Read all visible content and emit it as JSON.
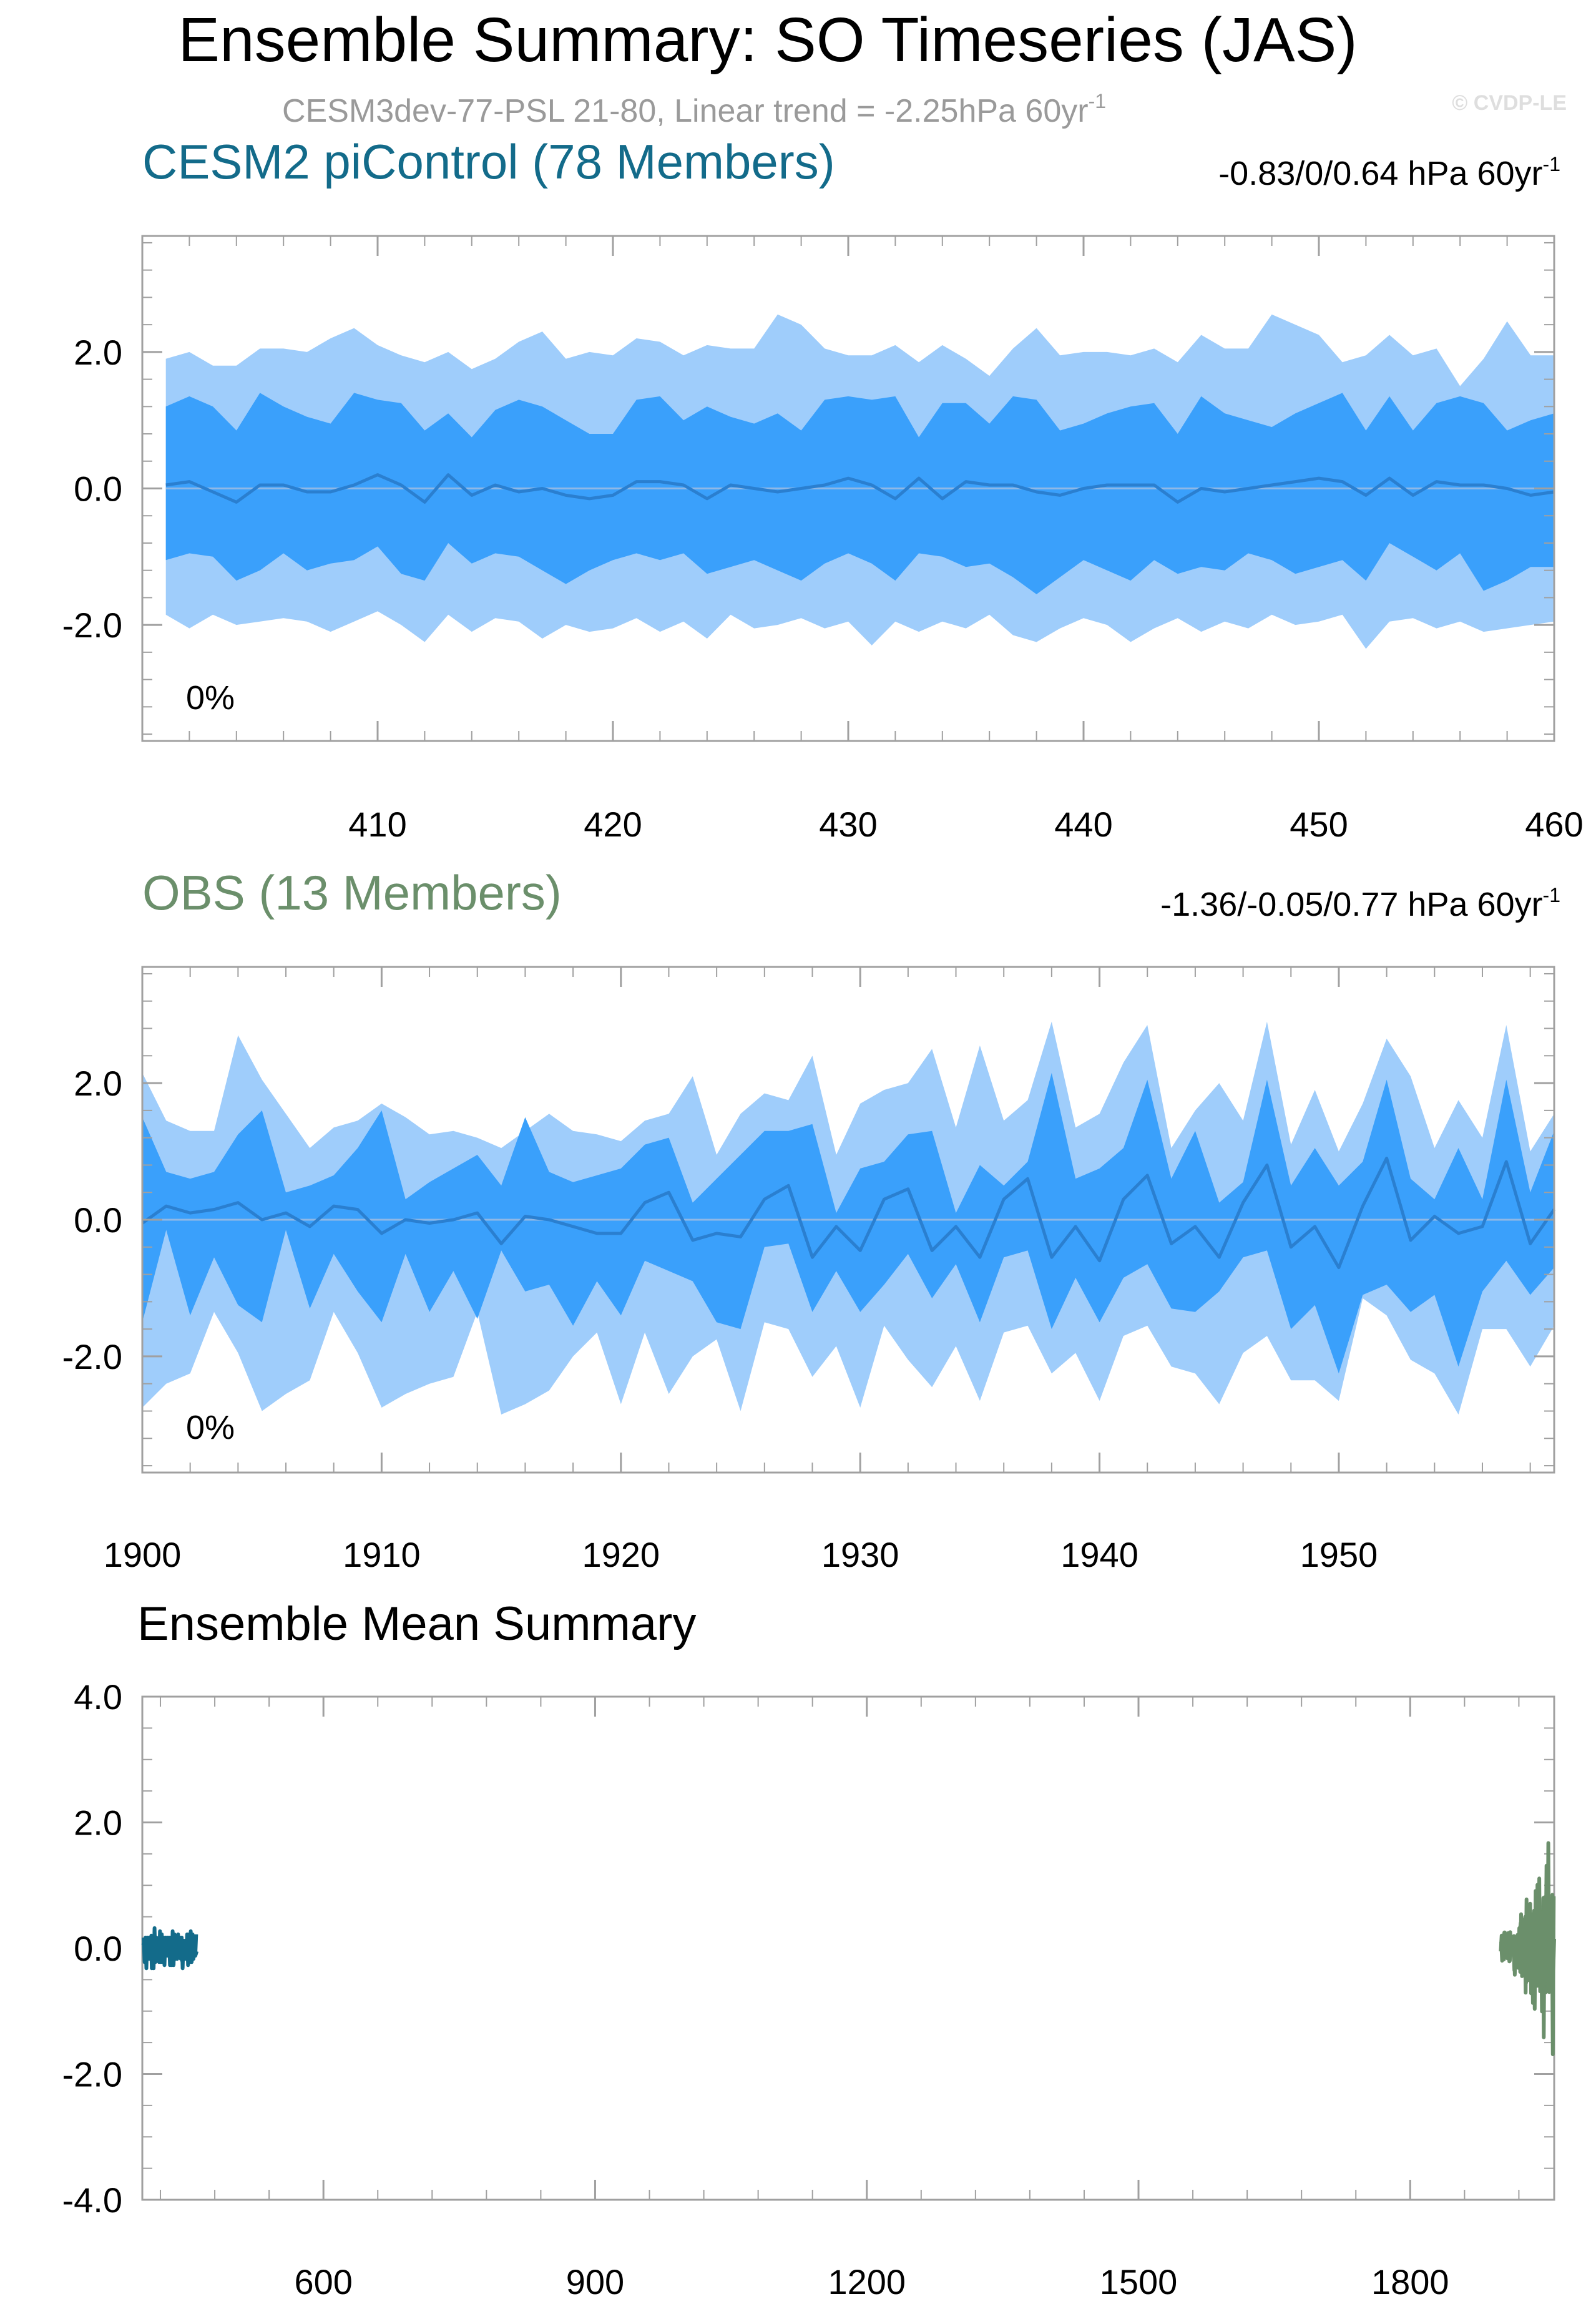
{
  "title": "Ensemble Summary: SO Timeseries (JAS)",
  "subtitle": "CESM3dev-77-PSL 21-80, Linear trend = -2.25hPa 60yr",
  "subtitle_sup": "-1",
  "watermark": "© CVDP-LE",
  "colors": {
    "band_outer": "#9fcdfb",
    "band_inner": "#3aa0fb",
    "mean_line": "#2a7fd0",
    "zero_line": "#8fb8e6",
    "cesm_label": "#136b8a",
    "obs_label": "#6b8f6b",
    "axis": "#a0a0a0"
  },
  "chart_data": [
    {
      "type": "area",
      "panel": "cesm",
      "title": "CESM2 piControl (78 Members)",
      "trend_text": "-0.83/0/0.64 hPa 60yr",
      "trend_sup": "-1",
      "annotation": "0%",
      "xlim": [
        400,
        460
      ],
      "ylim": [
        -3.7,
        3.7
      ],
      "yticks": [
        2.0,
        0.0,
        -2.0
      ],
      "ytick_labels": [
        "2.0",
        "0.0",
        "-2.0"
      ],
      "xticks": [
        410,
        420,
        430,
        440,
        450,
        460
      ],
      "xtick_labels": [
        "410",
        "420",
        "430",
        "440",
        "450",
        "460"
      ],
      "x": [
        401,
        402,
        403,
        404,
        405,
        406,
        407,
        408,
        409,
        410,
        411,
        412,
        413,
        414,
        415,
        416,
        417,
        418,
        419,
        420,
        421,
        422,
        423,
        424,
        425,
        426,
        427,
        428,
        429,
        430,
        431,
        432,
        433,
        434,
        435,
        436,
        437,
        438,
        439,
        440,
        441,
        442,
        443,
        444,
        445,
        446,
        447,
        448,
        449,
        450,
        451,
        452,
        453,
        454,
        455,
        456,
        457,
        458,
        459,
        460
      ],
      "outer_upper": [
        1.9,
        2.0,
        1.8,
        1.8,
        2.05,
        2.05,
        2.0,
        2.2,
        2.35,
        2.1,
        1.95,
        1.85,
        2.0,
        1.75,
        1.9,
        2.15,
        2.3,
        1.9,
        2.0,
        1.95,
        2.2,
        2.15,
        1.95,
        2.1,
        2.05,
        2.05,
        2.55,
        2.4,
        2.05,
        1.95,
        1.95,
        2.1,
        1.85,
        2.1,
        1.9,
        1.65,
        2.05,
        2.35,
        1.95,
        2.0,
        2.0,
        1.95,
        2.05,
        1.85,
        2.25,
        2.05,
        2.05,
        2.55,
        2.4,
        2.25,
        1.85,
        1.95,
        2.25,
        1.95,
        2.05,
        1.5,
        1.9,
        2.45,
        1.95,
        1.95
      ],
      "inner_upper": [
        1.2,
        1.35,
        1.2,
        0.85,
        1.4,
        1.2,
        1.05,
        0.95,
        1.4,
        1.3,
        1.25,
        0.85,
        1.1,
        0.75,
        1.15,
        1.3,
        1.2,
        1.0,
        0.8,
        0.8,
        1.3,
        1.35,
        1.0,
        1.2,
        1.05,
        0.95,
        1.1,
        0.85,
        1.3,
        1.35,
        1.3,
        1.35,
        0.75,
        1.25,
        1.25,
        0.95,
        1.35,
        1.3,
        0.85,
        0.95,
        1.1,
        1.2,
        1.25,
        0.8,
        1.35,
        1.1,
        1.0,
        0.9,
        1.1,
        1.25,
        1.4,
        0.85,
        1.35,
        0.85,
        1.25,
        1.35,
        1.25,
        0.85,
        1.0,
        1.1
      ],
      "mean": [
        0.05,
        0.1,
        -0.05,
        -0.2,
        0.05,
        0.05,
        -0.05,
        -0.05,
        0.05,
        0.2,
        0.05,
        -0.2,
        0.2,
        -0.1,
        0.05,
        -0.05,
        0.0,
        -0.1,
        -0.15,
        -0.1,
        0.1,
        0.1,
        0.05,
        -0.15,
        0.05,
        0.0,
        -0.05,
        0.0,
        0.05,
        0.15,
        0.05,
        -0.15,
        0.15,
        -0.15,
        0.1,
        0.05,
        0.05,
        -0.05,
        -0.1,
        0.0,
        0.05,
        0.05,
        0.05,
        -0.2,
        0.0,
        -0.05,
        0.0,
        0.05,
        0.1,
        0.15,
        0.1,
        -0.1,
        0.15,
        -0.1,
        0.1,
        0.05,
        0.05,
        0.0,
        -0.1,
        -0.05
      ],
      "inner_lower": [
        -1.05,
        -0.95,
        -1.0,
        -1.35,
        -1.2,
        -0.95,
        -1.2,
        -1.1,
        -1.05,
        -0.85,
        -1.25,
        -1.35,
        -0.8,
        -1.1,
        -0.95,
        -1.0,
        -1.2,
        -1.4,
        -1.2,
        -1.05,
        -0.95,
        -1.05,
        -0.95,
        -1.25,
        -1.15,
        -1.05,
        -1.2,
        -1.35,
        -1.1,
        -0.95,
        -1.1,
        -1.35,
        -0.95,
        -1.0,
        -1.15,
        -1.1,
        -1.3,
        -1.55,
        -1.3,
        -1.05,
        -1.2,
        -1.35,
        -1.05,
        -1.25,
        -1.15,
        -1.2,
        -0.95,
        -1.05,
        -1.25,
        -1.15,
        -1.05,
        -1.35,
        -0.8,
        -1.0,
        -1.2,
        -0.95,
        -1.5,
        -1.35,
        -1.15,
        -1.15
      ],
      "outer_lower": [
        -1.85,
        -2.05,
        -1.85,
        -2.0,
        -1.95,
        -1.9,
        -1.95,
        -2.1,
        -1.95,
        -1.8,
        -2.0,
        -2.25,
        -1.85,
        -2.1,
        -1.9,
        -1.95,
        -2.2,
        -2.0,
        -2.1,
        -2.05,
        -1.9,
        -2.1,
        -1.95,
        -2.2,
        -1.85,
        -2.05,
        -2.0,
        -1.9,
        -2.05,
        -1.95,
        -2.3,
        -1.95,
        -2.1,
        -1.95,
        -2.05,
        -1.85,
        -2.15,
        -2.25,
        -2.05,
        -1.9,
        -2.0,
        -2.25,
        -2.05,
        -1.9,
        -2.1,
        -1.95,
        -2.05,
        -1.85,
        -2.0,
        -1.95,
        -1.85,
        -2.35,
        -1.95,
        -1.9,
        -2.05,
        -1.95,
        -2.1,
        -2.05,
        -2.0,
        -1.95
      ]
    },
    {
      "type": "area",
      "panel": "obs",
      "title": "OBS (13 Members)",
      "trend_text": "-1.36/-0.05/0.77 hPa 60yr",
      "trend_sup": "-1",
      "annotation": "0%",
      "xlim": [
        1900,
        1959
      ],
      "ylim": [
        -3.7,
        3.7
      ],
      "yticks": [
        2.0,
        0.0,
        -2.0
      ],
      "ytick_labels": [
        "2.0",
        "0.0",
        "-2.0"
      ],
      "xticks": [
        1900,
        1910,
        1920,
        1930,
        1940,
        1950
      ],
      "xtick_labels": [
        "1900",
        "1910",
        "1920",
        "1930",
        "1940",
        "1950"
      ],
      "x": [
        1900,
        1901,
        1902,
        1903,
        1904,
        1905,
        1906,
        1907,
        1908,
        1909,
        1910,
        1911,
        1912,
        1913,
        1914,
        1915,
        1916,
        1917,
        1918,
        1919,
        1920,
        1921,
        1922,
        1923,
        1924,
        1925,
        1926,
        1927,
        1928,
        1929,
        1930,
        1931,
        1932,
        1933,
        1934,
        1935,
        1936,
        1937,
        1938,
        1939,
        1940,
        1941,
        1942,
        1943,
        1944,
        1945,
        1946,
        1947,
        1948,
        1949,
        1950,
        1951,
        1952,
        1953,
        1954,
        1955,
        1956,
        1957,
        1958,
        1959
      ],
      "outer_upper": [
        2.15,
        1.45,
        1.3,
        1.3,
        2.7,
        2.05,
        1.55,
        1.05,
        1.35,
        1.45,
        1.7,
        1.5,
        1.25,
        1.3,
        1.2,
        1.05,
        1.3,
        1.55,
        1.3,
        1.25,
        1.15,
        1.45,
        1.55,
        2.1,
        0.95,
        1.55,
        1.85,
        1.75,
        2.4,
        0.95,
        1.7,
        1.9,
        2.0,
        2.5,
        1.35,
        2.55,
        1.45,
        1.75,
        2.9,
        1.35,
        1.55,
        2.3,
        2.85,
        1.05,
        1.6,
        2.0,
        1.45,
        2.9,
        1.1,
        1.9,
        1.0,
        1.7,
        2.65,
        2.1,
        1.05,
        1.75,
        1.2,
        2.85,
        1.0,
        1.55
      ],
      "inner_upper": [
        1.5,
        0.7,
        0.6,
        0.7,
        1.25,
        1.6,
        0.4,
        0.5,
        0.65,
        1.05,
        1.6,
        0.3,
        0.55,
        0.75,
        0.95,
        0.5,
        1.5,
        0.7,
        0.55,
        0.65,
        0.75,
        1.1,
        1.2,
        0.25,
        0.6,
        0.95,
        1.3,
        1.3,
        1.4,
        0.1,
        0.75,
        0.85,
        1.25,
        1.3,
        0.1,
        0.8,
        0.5,
        0.85,
        2.15,
        0.6,
        0.75,
        1.05,
        2.05,
        0.6,
        1.3,
        0.25,
        0.55,
        2.05,
        0.5,
        1.05,
        0.5,
        0.85,
        2.05,
        0.6,
        0.3,
        1.05,
        0.3,
        2.05,
        0.4,
        1.3
      ],
      "mean": [
        -0.05,
        0.2,
        0.1,
        0.15,
        0.25,
        0.0,
        0.1,
        -0.1,
        0.2,
        0.15,
        -0.2,
        0.0,
        -0.05,
        0.0,
        0.1,
        -0.35,
        0.05,
        0.0,
        -0.1,
        -0.2,
        -0.2,
        0.25,
        0.4,
        -0.3,
        -0.2,
        -0.25,
        0.3,
        0.5,
        -0.55,
        -0.1,
        -0.45,
        0.3,
        0.45,
        -0.45,
        -0.1,
        -0.55,
        0.3,
        0.6,
        -0.55,
        -0.1,
        -0.6,
        0.3,
        0.65,
        -0.35,
        -0.1,
        -0.55,
        0.25,
        0.8,
        -0.4,
        -0.1,
        -0.7,
        0.2,
        0.9,
        -0.3,
        0.05,
        -0.2,
        -0.1,
        0.85,
        -0.35,
        0.15
      ],
      "inner_lower": [
        -1.5,
        -0.15,
        -1.4,
        -0.55,
        -1.25,
        -1.5,
        -0.15,
        -1.3,
        -0.5,
        -1.05,
        -1.5,
        -0.5,
        -1.35,
        -0.75,
        -1.45,
        -0.45,
        -1.05,
        -0.95,
        -1.55,
        -0.9,
        -1.4,
        -0.6,
        -0.75,
        -0.9,
        -1.5,
        -1.6,
        -0.4,
        -0.35,
        -1.35,
        -0.75,
        -1.35,
        -0.95,
        -0.5,
        -1.15,
        -0.65,
        -1.5,
        -0.55,
        -0.45,
        -1.6,
        -0.85,
        -1.5,
        -0.85,
        -0.65,
        -1.3,
        -1.35,
        -1.05,
        -0.55,
        -0.45,
        -1.6,
        -1.25,
        -2.25,
        -1.1,
        -0.95,
        -1.35,
        -1.1,
        -2.15,
        -1.05,
        -0.6,
        -1.1,
        -0.7
      ],
      "outer_lower": [
        -2.75,
        -2.4,
        -2.25,
        -1.35,
        -1.95,
        -2.8,
        -2.55,
        -2.35,
        -1.35,
        -1.95,
        -2.75,
        -2.55,
        -2.4,
        -2.3,
        -1.35,
        -2.85,
        -2.7,
        -2.5,
        -2.0,
        -1.65,
        -2.7,
        -1.65,
        -2.55,
        -2.0,
        -1.75,
        -2.8,
        -1.5,
        -1.6,
        -2.3,
        -1.85,
        -2.75,
        -1.55,
        -2.05,
        -2.45,
        -1.85,
        -2.65,
        -1.65,
        -1.55,
        -2.25,
        -1.95,
        -2.65,
        -1.7,
        -1.55,
        -2.15,
        -2.25,
        -2.7,
        -1.95,
        -1.7,
        -2.35,
        -2.35,
        -2.65,
        -1.15,
        -1.4,
        -2.05,
        -2.25,
        -2.85,
        -1.6,
        -1.6,
        -2.15,
        -1.55
      ]
    },
    {
      "type": "line",
      "panel": "summary",
      "title": "Ensemble Mean Summary",
      "xlim": [
        400,
        1959
      ],
      "ylim": [
        -4.0,
        4.0
      ],
      "yticks": [
        4.0,
        2.0,
        0.0,
        -2.0,
        -4.0
      ],
      "ytick_labels": [
        "4.0",
        "2.0",
        "0.0",
        "-2.0",
        "-4.0"
      ],
      "xticks": [
        600,
        900,
        1200,
        1500,
        1800
      ],
      "xtick_labels": [
        "600",
        "900",
        "1200",
        "1500",
        "1800"
      ],
      "series": [
        {
          "color": "#136b8a",
          "x0": 401,
          "x1": 460,
          "source_panel": "cesm"
        },
        {
          "color": "#6b8f6b",
          "x0": 1900,
          "x1": 1959,
          "source_panel": "obs"
        }
      ]
    }
  ]
}
